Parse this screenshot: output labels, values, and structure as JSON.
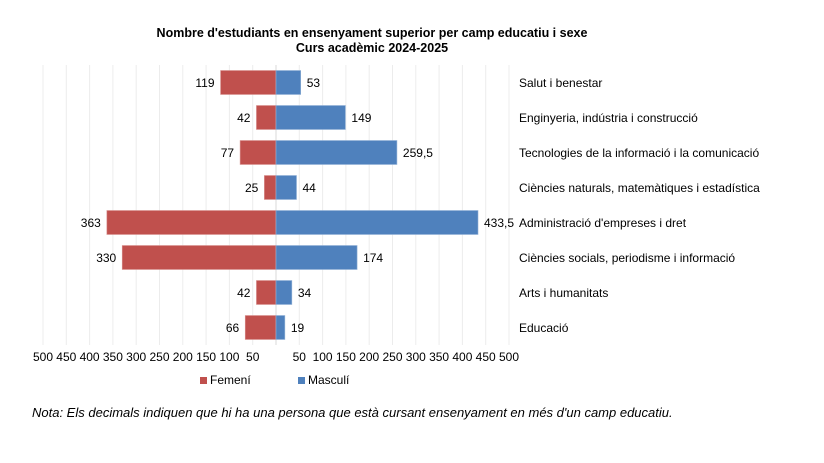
{
  "chart_data": {
    "type": "bar",
    "orientation": "horizontal-diverging",
    "title": "Nombre d'estudiants  en ensenyament superior per camp educatiu i sexe",
    "subtitle": "Curs acadèmic 2024-2025",
    "categories": [
      "Salut i benestar",
      "Enginyeria, indústria i construcció",
      "Tecnologies de la informació i la comunicació",
      "Ciències naturals, matemàtiques i estadística",
      "Administració d'empreses i dret",
      "Ciències socials, periodisme i informació",
      "Arts i humanitats",
      "Educació"
    ],
    "series": [
      {
        "name": "Femení",
        "color": "#c0504d",
        "values": [
          119,
          42,
          77,
          25,
          363,
          330,
          42,
          66
        ],
        "labels": [
          "119",
          "42",
          "77",
          "25",
          "363",
          "330",
          "42",
          "66"
        ]
      },
      {
        "name": "Masculí",
        "color": "#4f81bd",
        "values": [
          53,
          149,
          259.5,
          44,
          433.5,
          174,
          34,
          19
        ],
        "labels": [
          "53",
          "149",
          "259,5",
          "44",
          "433,5",
          "174",
          "34",
          "19"
        ]
      }
    ],
    "xlim": [
      -500,
      500
    ],
    "xticks_left": [
      "500",
      "450",
      "400",
      "350",
      "300",
      "250",
      "200",
      "150",
      "100",
      "50"
    ],
    "xticks_right": [
      "50",
      "100",
      "150",
      "200",
      "250",
      "300",
      "350",
      "400",
      "450",
      "500"
    ],
    "xlabel": "",
    "ylabel": "",
    "grid": true,
    "legend": "bottom-center"
  },
  "note": "Nota: Els decimals indiquen que hi ha una persona que està cursant ensenyament en més d'un camp educatiu."
}
